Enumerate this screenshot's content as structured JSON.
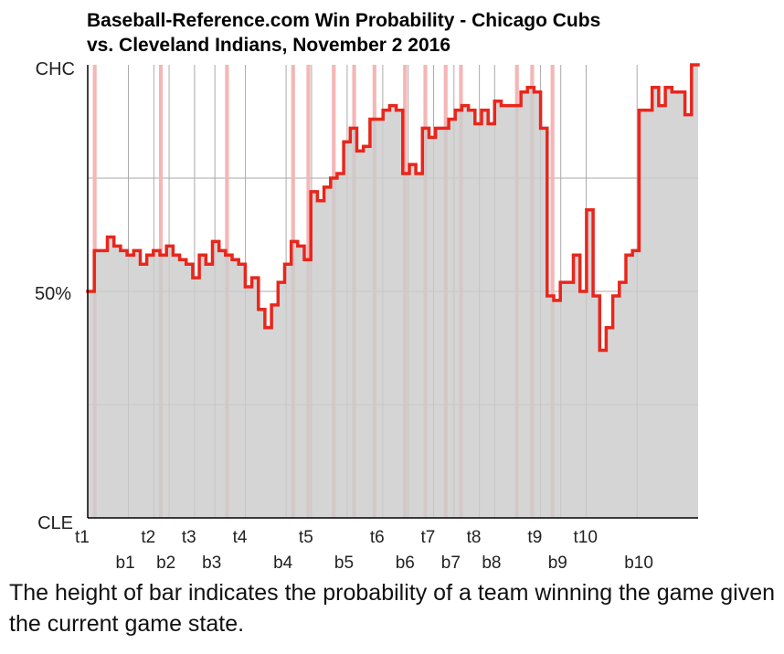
{
  "caption": "The height of bar indicates the probability of a team winning the game given the current game state.",
  "colors": {
    "line": "#e8261c",
    "fill": "#cccccc",
    "highlight": "#f4b6b6",
    "grid": "#aaaaaa",
    "axis": "#000000"
  },
  "chart_data": {
    "type": "area",
    "title": "Baseball-Reference.com Win Probability - Chicago Cubs vs. Cleveland Indians, November 2 2016",
    "title_lines": [
      "Baseball-Reference.com Win Probability - Chicago Cubs",
      "vs. Cleveland Indians, November 2 2016"
    ],
    "y_tick_labels": {
      "top": "CHC",
      "middle": "50%",
      "bottom": "CLE"
    },
    "ylim": [
      0,
      100
    ],
    "grid": true,
    "plate_appearances": 120,
    "inning_labels": {
      "top_row": [
        {
          "label": "t1",
          "pa": 0
        },
        {
          "label": "t2",
          "pa": 13
        },
        {
          "label": "t3",
          "pa": 21
        },
        {
          "label": "t4",
          "pa": 31
        },
        {
          "label": "t5",
          "pa": 44
        },
        {
          "label": "t6",
          "pa": 58
        },
        {
          "label": "t7",
          "pa": 68
        },
        {
          "label": "t8",
          "pa": 77
        },
        {
          "label": "t9",
          "pa": 89
        },
        {
          "label": "t10",
          "pa": 98
        }
      ],
      "bottom_row": [
        {
          "label": "b1",
          "pa": 8
        },
        {
          "label": "b2",
          "pa": 16
        },
        {
          "label": "b3",
          "pa": 25
        },
        {
          "label": "b4",
          "pa": 39
        },
        {
          "label": "b5",
          "pa": 51
        },
        {
          "label": "b6",
          "pa": 63
        },
        {
          "label": "b7",
          "pa": 72
        },
        {
          "label": "b8",
          "pa": 80
        },
        {
          "label": "b9",
          "pa": 93
        },
        {
          "label": "b10",
          "pa": 108
        }
      ]
    },
    "win_probability_chc": [
      50,
      59,
      59,
      62,
      60,
      59,
      58,
      59,
      56,
      58,
      59,
      58,
      60,
      58,
      57,
      56,
      53,
      58,
      56,
      61,
      59,
      58,
      57,
      56,
      51,
      53,
      46,
      42,
      47,
      52,
      56,
      61,
      60,
      57,
      72,
      70,
      73,
      75,
      76,
      83,
      86,
      81,
      82,
      88,
      88,
      90,
      91,
      90,
      76,
      78,
      76,
      86,
      84,
      86,
      86,
      88,
      90,
      91,
      90,
      87,
      90,
      87,
      92,
      91,
      91,
      91,
      94,
      95,
      94,
      86,
      49,
      48,
      52,
      52,
      58,
      50,
      68,
      49,
      37,
      42,
      49,
      52,
      58,
      59,
      90,
      90,
      95,
      91,
      95,
      94,
      94,
      89,
      100
    ],
    "highlight_pa": [
      1,
      14,
      27,
      40,
      43,
      48,
      52,
      56,
      62,
      66,
      70,
      73,
      84,
      87,
      91
    ]
  }
}
